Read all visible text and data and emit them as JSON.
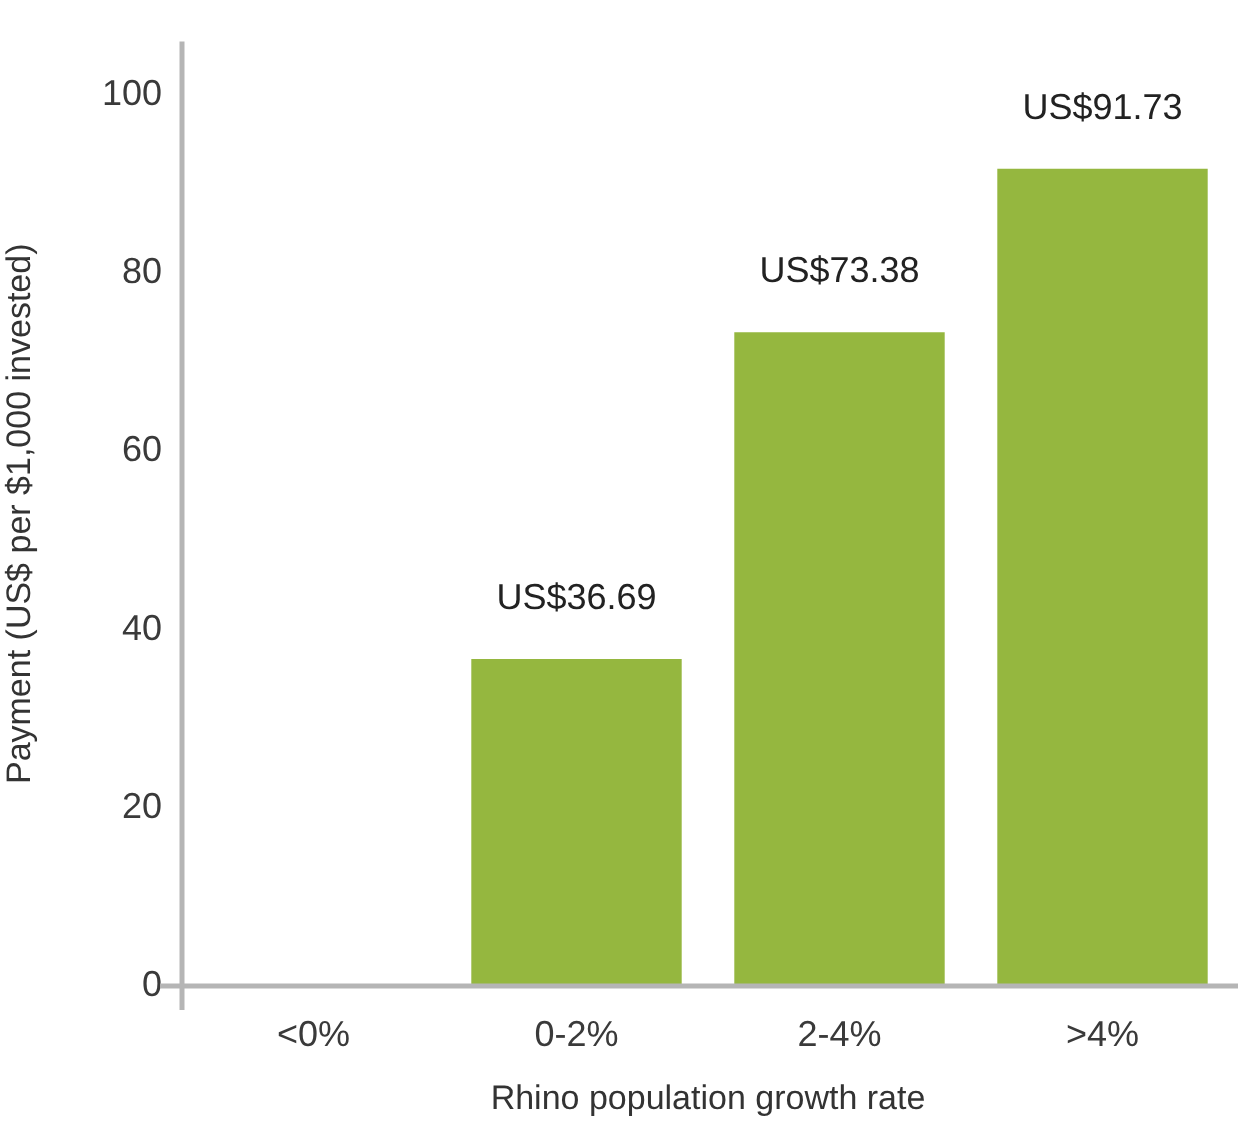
{
  "chart_data": {
    "type": "bar",
    "xlabel": "Rhino population growth rate",
    "ylabel": "Payment (US$ per $1,000 invested)",
    "categories": [
      "<0%",
      "0-2%",
      "2-4%",
      ">4%"
    ],
    "values": [
      0,
      36.69,
      73.38,
      91.73
    ],
    "value_labels": [
      null,
      "US$36.69",
      "US$73.38",
      "US$91.73"
    ],
    "color": "#95b73f",
    "ylim": [
      0,
      106
    ],
    "yticks": [
      0,
      20,
      40,
      60,
      80,
      100
    ]
  }
}
